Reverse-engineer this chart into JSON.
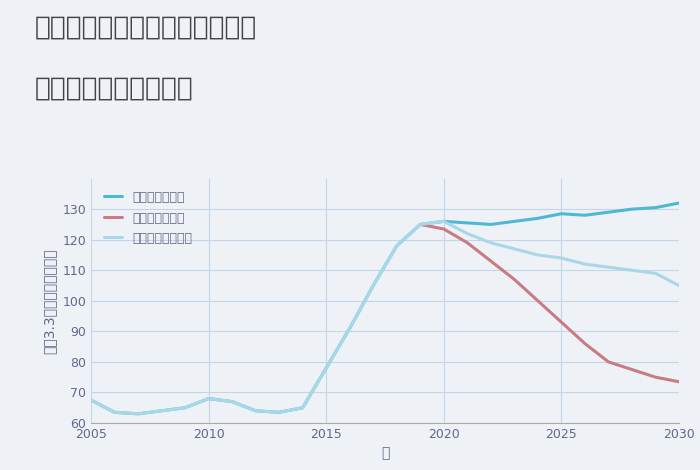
{
  "title_line1": "愛知県名古屋市中村区若宮町の",
  "title_line2": "中古戸建ての価格推移",
  "xlabel": "年",
  "ylabel": "坪（3.3㎡）単価（万円）",
  "ylim": [
    60,
    140
  ],
  "yticks": [
    60,
    70,
    80,
    90,
    100,
    110,
    120,
    130
  ],
  "background_color": "#eef2f7",
  "plot_bg_color": "#eef2f7",
  "grid_color": "#c5d5e8",
  "good_scenario": {
    "years": [
      2005,
      2006,
      2007,
      2008,
      2009,
      2010,
      2011,
      2012,
      2013,
      2014,
      2015,
      2016,
      2017,
      2018,
      2019,
      2020,
      2021,
      2022,
      2023,
      2024,
      2025,
      2026,
      2027,
      2028,
      2029,
      2030
    ],
    "values": [
      67.5,
      63.5,
      63.0,
      64.0,
      65.0,
      68.0,
      67.0,
      64.0,
      63.5,
      65.0,
      78.0,
      91.0,
      105.0,
      118.0,
      125.0,
      126.0,
      125.5,
      125.0,
      126.0,
      127.0,
      128.5,
      128.0,
      129.0,
      130.0,
      130.5,
      132.0
    ],
    "color": "#4db8d4",
    "linewidth": 2.2,
    "label": "グッドシナリオ"
  },
  "bad_scenario": {
    "years": [
      2019,
      2020,
      2021,
      2022,
      2023,
      2024,
      2025,
      2026,
      2027,
      2028,
      2029,
      2030
    ],
    "values": [
      125.0,
      123.5,
      119.0,
      113.0,
      107.0,
      100.0,
      93.0,
      86.0,
      80.0,
      77.5,
      75.0,
      73.5
    ],
    "color": "#c97b84",
    "linewidth": 2.2,
    "label": "バッドシナリオ"
  },
  "normal_scenario": {
    "years": [
      2005,
      2006,
      2007,
      2008,
      2009,
      2010,
      2011,
      2012,
      2013,
      2014,
      2015,
      2016,
      2017,
      2018,
      2019,
      2020,
      2021,
      2022,
      2023,
      2024,
      2025,
      2026,
      2027,
      2028,
      2029,
      2030
    ],
    "values": [
      67.5,
      63.5,
      63.0,
      64.0,
      65.0,
      68.0,
      67.0,
      64.0,
      63.5,
      65.0,
      78.0,
      91.0,
      105.0,
      118.0,
      125.0,
      126.0,
      122.0,
      119.0,
      117.0,
      115.0,
      114.0,
      112.0,
      111.0,
      110.0,
      109.0,
      105.0
    ],
    "color": "#a8d8e8",
    "linewidth": 2.2,
    "label": "ノーマルシナリオ"
  },
  "title_fontsize": 19,
  "title_color": "#444444",
  "axis_label_fontsize": 10,
  "tick_fontsize": 9,
  "legend_fontsize": 9,
  "tick_color": "#666688",
  "label_color": "#666688"
}
